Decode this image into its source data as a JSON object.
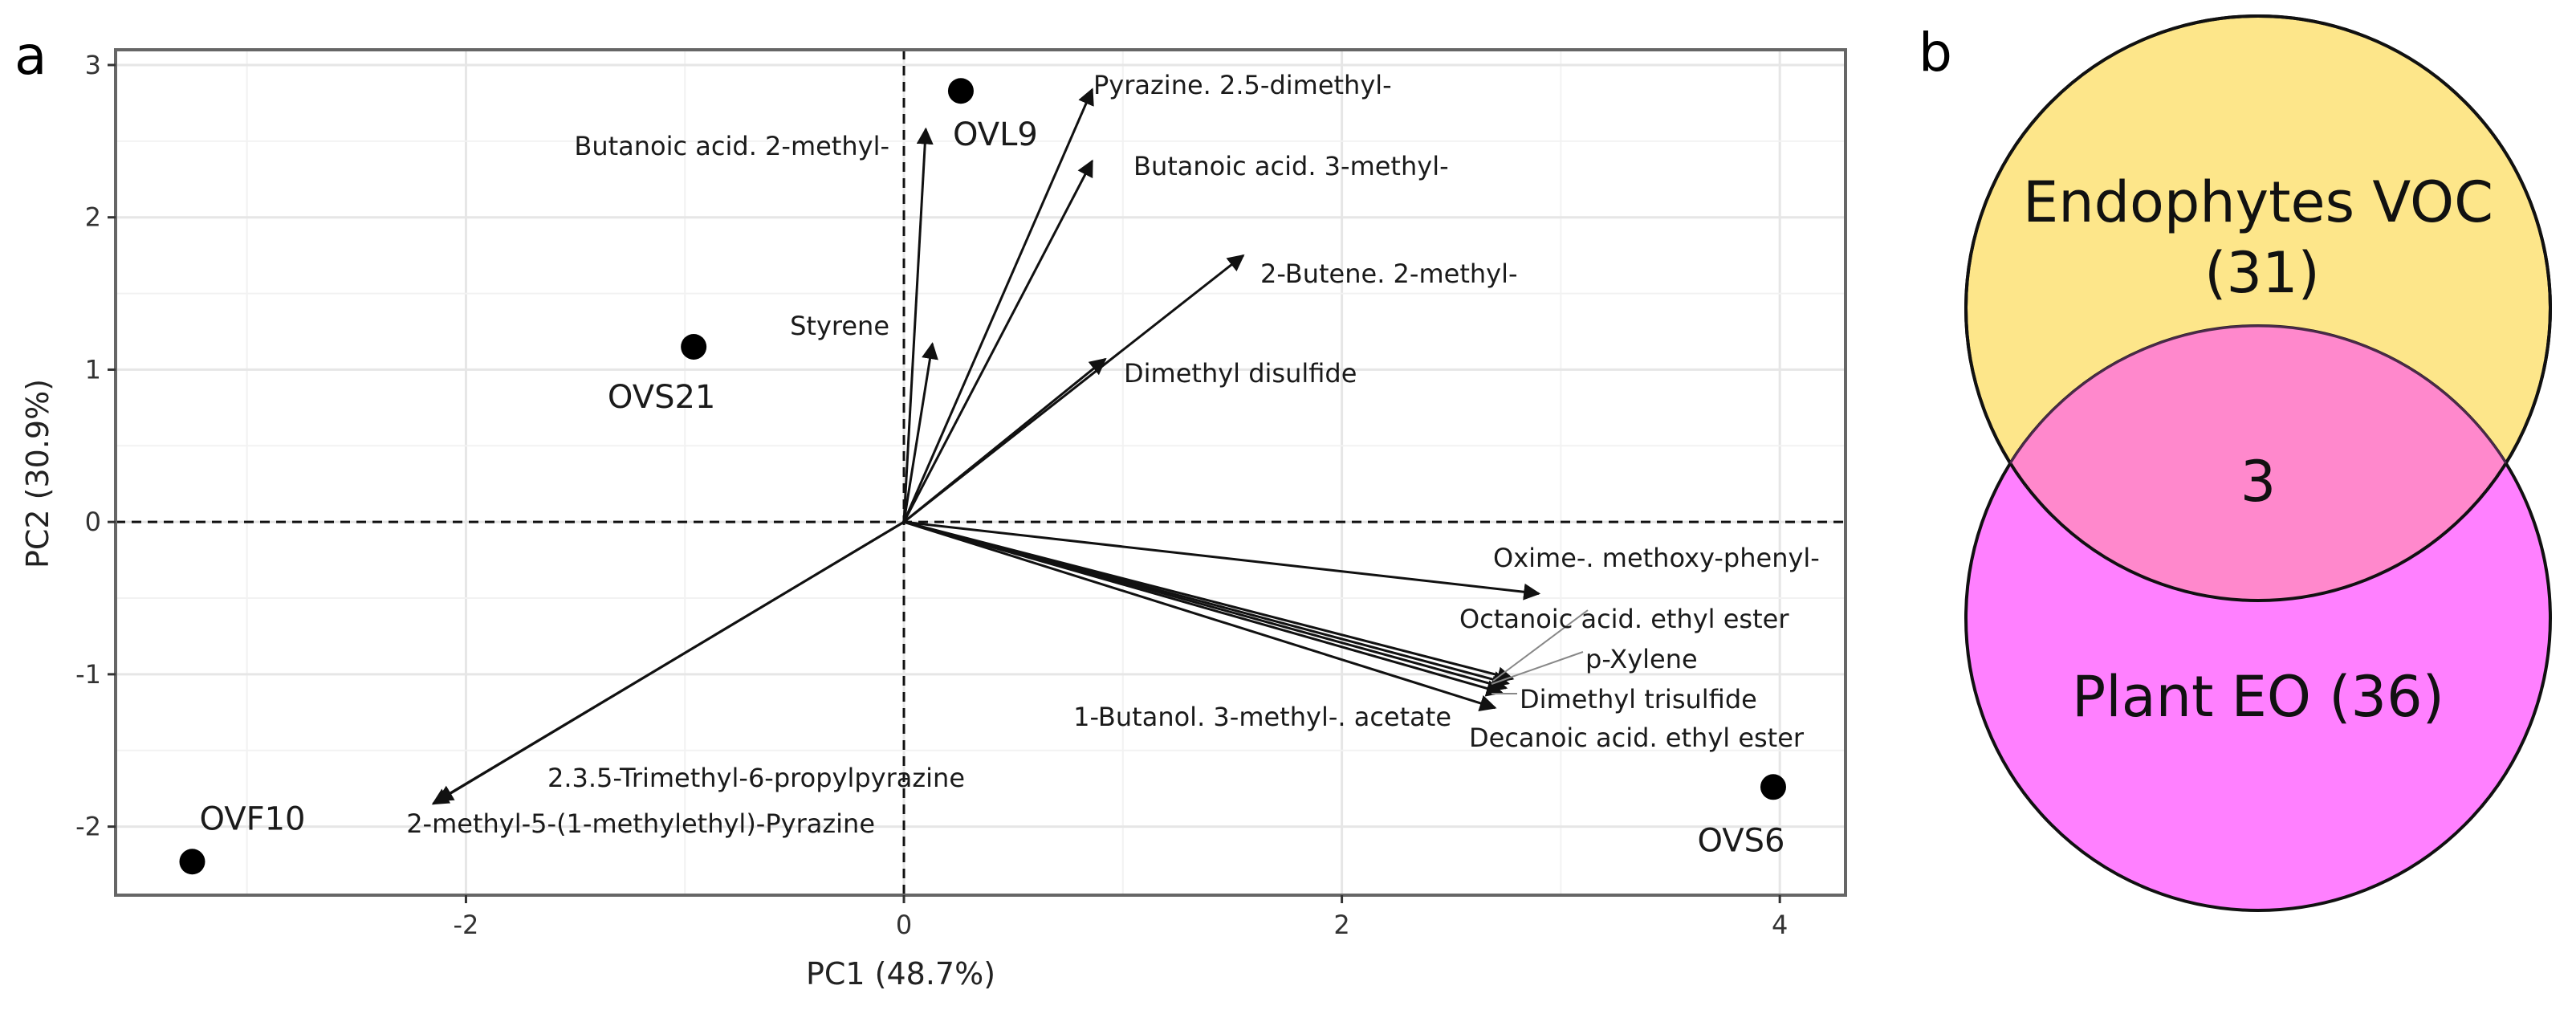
{
  "panels": {
    "a_label": "a",
    "b_label": "b"
  },
  "chart_data": [
    {
      "type": "scatter",
      "subtype": "pca-biplot",
      "xlabel": "PC1 (48.7%)",
      "ylabel": "PC2 (30.9%)",
      "xlim": [
        -3.6,
        4.3
      ],
      "ylim": [
        -2.45,
        3.1
      ],
      "xticks": [
        -2,
        0,
        2,
        4
      ],
      "yticks": [
        -2,
        -1,
        0,
        1,
        2,
        3
      ],
      "xtick_labels": [
        "-2",
        "0",
        "2",
        "4"
      ],
      "ytick_labels": [
        "-2",
        "-1",
        "0",
        "1",
        "2",
        "3"
      ],
      "grid": true,
      "reference_lines": {
        "x": 0,
        "y": 0,
        "style": "dashed"
      },
      "samples": [
        {
          "name": "OVL9",
          "x": 0.26,
          "y": 2.83
        },
        {
          "name": "OVS21",
          "x": -0.96,
          "y": 1.15
        },
        {
          "name": "OVF10",
          "x": -3.25,
          "y": -2.23
        },
        {
          "name": "OVS6",
          "x": 3.97,
          "y": -1.74
        }
      ],
      "loadings": [
        {
          "name": "Pyrazine. 2.5-dimethyl-",
          "x": 0.86,
          "y": 2.84
        },
        {
          "name": "Butanoic acid. 2-methyl-",
          "x": 0.1,
          "y": 2.58
        },
        {
          "name": "Butanoic acid. 3-methyl-",
          "x": 0.86,
          "y": 2.37
        },
        {
          "name": "2-Butene. 2-methyl-",
          "x": 1.55,
          "y": 1.75
        },
        {
          "name": "Styrene",
          "x": 0.13,
          "y": 1.17
        },
        {
          "name": "Dimethyl disulfide",
          "x": 0.92,
          "y": 1.07
        },
        {
          "name": "Oxime-. methoxy-phenyl-",
          "x": 2.9,
          "y": -0.47
        },
        {
          "name": "Octanoic acid. ethyl ester",
          "x": 2.78,
          "y": -1.03
        },
        {
          "name": "p-Xylene",
          "x": 2.76,
          "y": -1.06
        },
        {
          "name": "Dimethyl trisulfide",
          "x": 2.75,
          "y": -1.09
        },
        {
          "name": "Decanoic acid. ethyl ester",
          "x": 2.73,
          "y": -1.12
        },
        {
          "name": "1-Butanol. 3-methyl-. acetate",
          "x": 2.7,
          "y": -1.22
        },
        {
          "name": "2.3.5-Trimethyl-6-propylpyrazine",
          "x": -2.15,
          "y": -1.85
        },
        {
          "name": "2-methyl-5-(1-methylethyl)-Pyrazine",
          "x": -2.13,
          "y": -1.83
        }
      ]
    },
    {
      "type": "venn",
      "sets": [
        {
          "name": "Endophytes VOC",
          "count_label": "(31)",
          "color": "#fde68a"
        },
        {
          "name": "Plant EO (36)",
          "color": "#ff80ff"
        }
      ],
      "intersection": "3",
      "intersection_color": "#ff88cc"
    }
  ]
}
